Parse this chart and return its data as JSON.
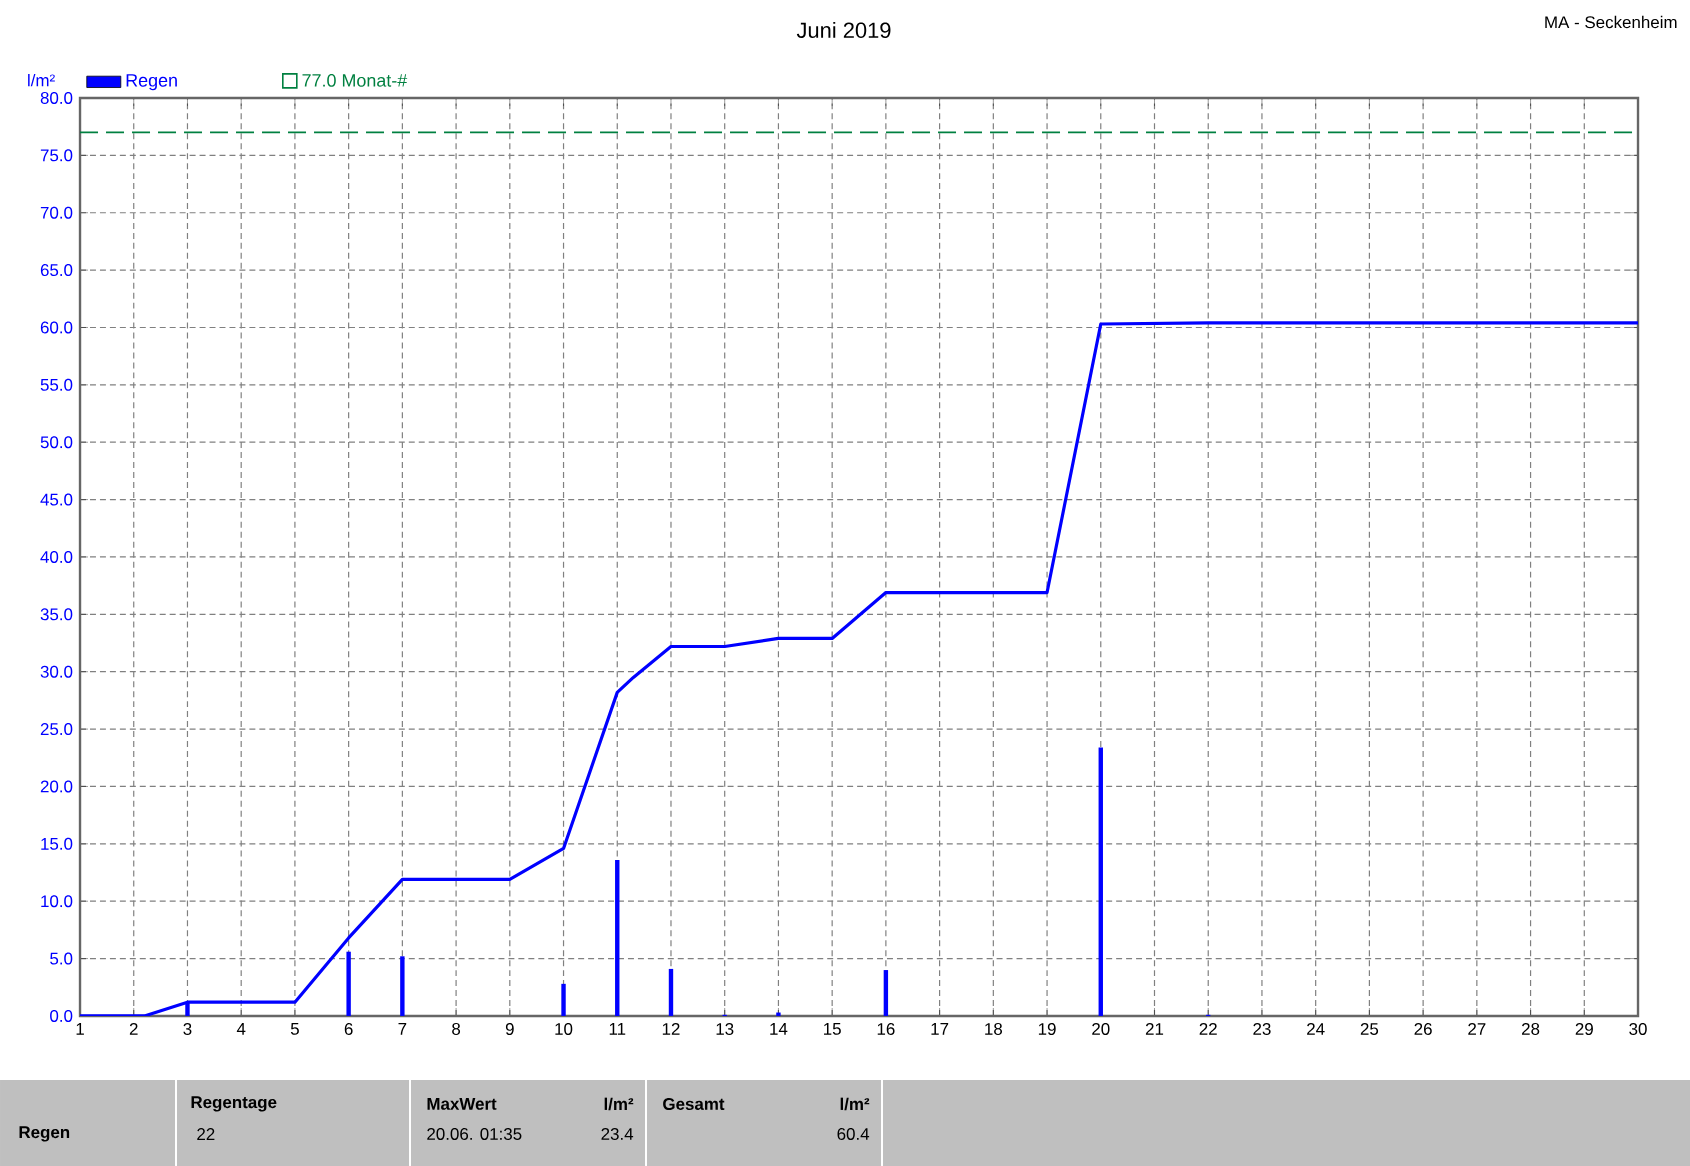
{
  "chart_data": {
    "type": "bar",
    "title": "Juni 2019",
    "ylabel": "l/m²",
    "annotations": [
      "MA - Seckenheim",
      "Regen",
      "Regentage",
      "22",
      "MaxWert",
      "20.06.  01:35",
      "l/m²",
      "23.4",
      "Gesamt",
      "l/m²",
      "60.4"
    ],
    "series": [
      {
        "name": "Regen",
        "color": "#0000ff",
        "x": [
          3,
          6,
          7,
          10,
          11,
          12,
          13,
          14,
          16,
          20,
          22
        ],
        "values": [
          1.2,
          5.6,
          5.2,
          2.8,
          13.6,
          4.1,
          0.1,
          0.3,
          4.0,
          23.4,
          0.1
        ]
      },
      {
        "type": "line",
        "color": "#0000ff",
        "x": [
          1,
          2.2,
          3,
          5,
          6,
          7,
          9,
          10,
          11,
          11.3,
          12,
          13,
          14,
          15,
          16,
          19,
          20,
          22,
          30
        ],
        "values": [
          0,
          0,
          1.2,
          1.2,
          6.8,
          11.9,
          11.9,
          14.6,
          28.2,
          29.5,
          32.2,
          32.2,
          32.9,
          32.9,
          36.9,
          36.9,
          60.3,
          60.4,
          60.4
        ]
      }
    ],
    "ref_lines": [
      {
        "axis": "y",
        "value": 77.0,
        "label": "77.0 Monat-#",
        "color": "#008040",
        "line_style": "dashed"
      }
    ],
    "xlim": [
      1,
      30
    ],
    "xticks": [
      1,
      2,
      3,
      4,
      5,
      6,
      7,
      8,
      9,
      10,
      11,
      12,
      13,
      14,
      15,
      16,
      17,
      18,
      19,
      20,
      21,
      22,
      23,
      24,
      25,
      26,
      27,
      28,
      29,
      30
    ],
    "ylim": [
      0,
      80
    ],
    "yticks": [
      {
        "value": 0,
        "label": "0.0"
      },
      {
        "value": 5,
        "label": "5.0"
      },
      {
        "value": 10,
        "label": "10.0"
      },
      {
        "value": 15,
        "label": "15.0"
      },
      {
        "value": 20,
        "label": "20.0"
      },
      {
        "value": 25,
        "label": "25.0"
      },
      {
        "value": 30,
        "label": "30.0"
      },
      {
        "value": 35,
        "label": "35.0"
      },
      {
        "value": 40,
        "label": "40.0"
      },
      {
        "value": 45,
        "label": "45.0"
      },
      {
        "value": 50,
        "label": "50.0"
      },
      {
        "value": 55,
        "label": "55.0"
      },
      {
        "value": 60,
        "label": "60.0"
      },
      {
        "value": 65,
        "label": "65.0"
      },
      {
        "value": 70,
        "label": "70.0"
      },
      {
        "value": 75,
        "label": "75.0"
      },
      {
        "value": 80,
        "label": "80.0"
      }
    ],
    "grid": true,
    "legend": "top left",
    "marker": "none"
  }
}
